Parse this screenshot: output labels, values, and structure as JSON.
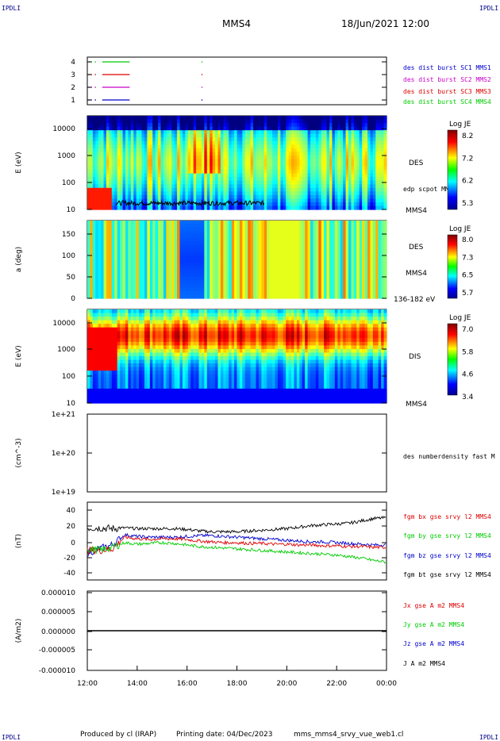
{
  "header": {
    "corner_label": "IPDLI",
    "spacecraft": "MMS4",
    "datetime": "18/Jun/2021 12:00"
  },
  "footer": {
    "produced_by": "Produced by cl (IRAP)",
    "printing_date": "Printing date: 04/Dec/2023",
    "script": "mms_mms4_srvy_vue_web1.cl"
  },
  "time_axis": {
    "ticks": [
      "12:00",
      "14:00",
      "16:00",
      "18:00",
      "20:00",
      "22:00",
      "00:00"
    ],
    "range_hours": [
      12,
      24
    ]
  },
  "colors": {
    "blue": "#0000cc",
    "magenta": "#cc00cc",
    "red": "#dd0000",
    "green": "#00cc00",
    "black": "#000000"
  },
  "chart_data": [
    {
      "type": "line",
      "id": "burst",
      "yticks": [
        "4",
        "3",
        "2",
        "1"
      ],
      "legend": [
        {
          "name": "des dist burst SC1 MMS1",
          "color": "#0000cc"
        },
        {
          "name": "des dist burst SC2 MMS2",
          "color": "#cc00cc"
        },
        {
          "name": "des dist burst SC3 MMS3",
          "color": "#dd0000"
        },
        {
          "name": "des dist burst SC4 MMS4",
          "color": "#00cc00"
        }
      ],
      "series": [
        {
          "level": 4,
          "color": "#00cc00",
          "intervals": [
            [
              12.0,
              12.15
            ],
            [
              12.3,
              12.35
            ],
            [
              12.6,
              13.7
            ]
          ]
        },
        {
          "level": 3,
          "color": "#dd0000",
          "intervals": [
            [
              12.0,
              12.15
            ],
            [
              12.3,
              12.35
            ],
            [
              12.6,
              13.7
            ]
          ]
        },
        {
          "level": 2,
          "color": "#cc00cc",
          "intervals": [
            [
              12.0,
              12.15
            ],
            [
              12.3,
              12.35
            ],
            [
              12.6,
              13.7
            ]
          ]
        },
        {
          "level": 1,
          "color": "#0000cc",
          "intervals": [
            [
              12.0,
              12.15
            ],
            [
              12.3,
              12.35
            ],
            [
              12.6,
              13.7
            ]
          ]
        }
      ]
    },
    {
      "type": "heatmap",
      "id": "des_energy",
      "ylabel": "E (eV)",
      "yticks": [
        "10000",
        "1000",
        "100",
        "10"
      ],
      "ylim_log": [
        10,
        30000
      ],
      "right_label": "DES",
      "overlay_label": "edp scpot MMS4",
      "bottom_label": "MMS4",
      "colorbar": {
        "title": "Log JE",
        "ticks": [
          "8.2",
          "7.2",
          "6.2",
          "5.3"
        ]
      }
    },
    {
      "type": "heatmap",
      "id": "des_pitch",
      "ylabel": "a (deg)",
      "yticks": [
        "150",
        "100",
        "50",
        "0"
      ],
      "ylim": [
        0,
        180
      ],
      "right_label": "DES",
      "right_label2": "MMS4",
      "bottom_label": "136-182 eV",
      "colorbar": {
        "title": "Log JE",
        "ticks": [
          "8.0",
          "7.3",
          "6.5",
          "5.7"
        ]
      }
    },
    {
      "type": "heatmap",
      "id": "dis_energy",
      "ylabel": "E (eV)",
      "yticks": [
        "10000",
        "1000",
        "100",
        "10"
      ],
      "ylim_log": [
        10,
        30000
      ],
      "right_label": "DIS",
      "bottom_label": "MMS4",
      "colorbar": {
        "title": "Log JE",
        "ticks": [
          "7.0",
          "5.8",
          "4.6",
          "3.4"
        ]
      }
    },
    {
      "type": "line",
      "id": "density",
      "ylabel": "(cm^-3)",
      "yticks": [
        "1e+21",
        "1e+20",
        "1e+19"
      ],
      "legend": [
        {
          "name": "des numberdensity fast M",
          "color": "#000000"
        }
      ]
    },
    {
      "type": "line",
      "id": "fgm",
      "ylabel": "(nT)",
      "yticks": [
        "40",
        "20",
        "0",
        "-20",
        "-40"
      ],
      "ylim": [
        -50,
        50
      ],
      "legend": [
        {
          "name": "fgm bx gse srvy l2 MMS4",
          "color": "#dd0000"
        },
        {
          "name": "fgm by gse srvy l2 MMS4",
          "color": "#00cc00"
        },
        {
          "name": "fgm bz gse srvy l2 MMS4",
          "color": "#0000cc"
        },
        {
          "name": "fgm bt gse srvy l2 MMS4",
          "color": "#000000"
        }
      ],
      "series": [
        {
          "name": "bt",
          "color": "#000000",
          "x": [
            12,
            12.5,
            13,
            13.5,
            14,
            14.5,
            15,
            15.5,
            16,
            16.5,
            17,
            17.5,
            18,
            18.5,
            19,
            19.5,
            20,
            20.5,
            21,
            21.5,
            22,
            22.5,
            23,
            23.5,
            24
          ],
          "y": [
            17,
            17,
            16,
            17,
            16,
            16,
            16,
            16,
            15,
            13,
            12,
            12,
            12,
            13,
            14,
            15,
            16,
            18,
            20,
            21,
            22,
            23,
            26,
            29,
            30
          ]
        },
        {
          "name": "bz",
          "color": "#0000cc",
          "x": [
            12,
            12.5,
            13,
            13.5,
            14,
            14.5,
            15,
            15.5,
            16,
            16.5,
            17,
            17.5,
            18,
            18.5,
            19,
            19.5,
            20,
            20.5,
            21,
            21.5,
            22,
            22.5,
            23,
            23.5,
            24
          ],
          "y": [
            -15,
            -10,
            -5,
            8,
            6,
            5,
            5,
            5,
            6,
            7,
            7,
            6,
            5,
            4,
            3,
            2,
            1,
            0,
            -1,
            -1,
            -2,
            -3,
            -4,
            -5,
            -5
          ]
        },
        {
          "name": "bx",
          "color": "#dd0000",
          "x": [
            12,
            12.5,
            13,
            13.5,
            14,
            14.5,
            15,
            15.5,
            16,
            16.5,
            17,
            17.5,
            18,
            18.5,
            19,
            19.5,
            20,
            20.5,
            21,
            21.5,
            22,
            22.5,
            23,
            23.5,
            24
          ],
          "y": [
            -12,
            -12,
            -10,
            5,
            3,
            2,
            3,
            3,
            2,
            0,
            -1,
            -2,
            -2,
            -3,
            -3,
            -4,
            -4,
            -5,
            -5,
            -6,
            -6,
            -7,
            -7,
            -8,
            -8
          ]
        },
        {
          "name": "by",
          "color": "#00cc00",
          "x": [
            12,
            12.5,
            13,
            13.5,
            14,
            14.5,
            15,
            15.5,
            16,
            16.5,
            17,
            17.5,
            18,
            18.5,
            19,
            19.5,
            20,
            20.5,
            21,
            21.5,
            22,
            22.5,
            23,
            23.5,
            24
          ],
          "y": [
            -10,
            -12,
            -8,
            -2,
            -4,
            -3,
            -2,
            -3,
            -5,
            -7,
            -8,
            -9,
            -10,
            -11,
            -12,
            -13,
            -14,
            -15,
            -16,
            -17,
            -18,
            -20,
            -22,
            -25,
            -27
          ]
        }
      ]
    },
    {
      "type": "line",
      "id": "current",
      "ylabel": "(A/m2)",
      "yticks": [
        "0.000010",
        "0.000005",
        "0.000000",
        "-0.000005",
        "-0.000010"
      ],
      "ylim": [
        -1e-05,
        1e-05
      ],
      "legend": [
        {
          "name": "Jx gse A m2 MMS4",
          "color": "#dd0000"
        },
        {
          "name": "Jy gse A m2 MMS4",
          "color": "#00cc00"
        },
        {
          "name": "Jz gse A m2 MMS4",
          "color": "#0000cc"
        },
        {
          "name": "J A m2 MMS4",
          "color": "#000000"
        }
      ],
      "series": [
        {
          "name": "J",
          "color": "#000000",
          "x": [
            12,
            24
          ],
          "y": [
            0,
            0
          ]
        }
      ]
    }
  ]
}
